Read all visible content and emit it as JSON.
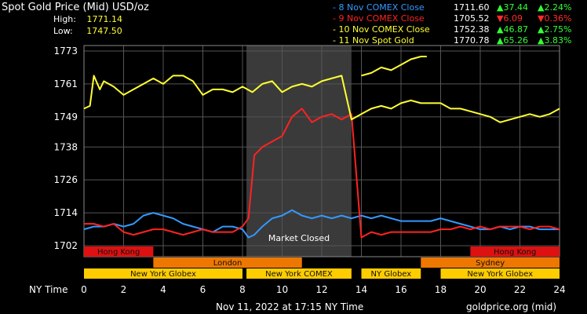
{
  "title": "Spot Gold Price (Mid) USD/oz",
  "high_label": "High:",
  "high_value": "1771.14",
  "low_label": "Low:",
  "low_value": "1747.50",
  "legend": [
    {
      "label": "- 8 Nov COMEX Close",
      "price": "1711.60",
      "change": "▲37.44",
      "pct": "▲2.24%",
      "dir": "up",
      "color": "#3399ff"
    },
    {
      "label": "- 9 Nov COMEX Close",
      "price": "1705.52",
      "change": "▼6.09",
      "pct": "▼0.36%",
      "dir": "down",
      "color": "#ff2222"
    },
    {
      "label": "- 10 Nov COMEX Close",
      "price": "1752.38",
      "change": "▲46.87",
      "pct": "▲2.75%",
      "dir": "up",
      "color": "#ffff33"
    },
    {
      "label": "- 11 Nov Spot Gold",
      "price": "1770.78",
      "change": "▲65.26",
      "pct": "▲3.83%",
      "dir": "up",
      "color": "#ffff33"
    }
  ],
  "market_closed_label": "Market Closed",
  "sessions": [
    {
      "label": "Hong Kong",
      "start": 0,
      "end": 3.5,
      "color": "#dd1111",
      "row": 0
    },
    {
      "label": "Hong Kong",
      "start": 19.5,
      "end": 24,
      "color": "#dd1111",
      "row": 0
    },
    {
      "label": "London",
      "start": 3.5,
      "end": 11,
      "color": "#ee7700",
      "row": 1
    },
    {
      "label": "Sydney",
      "start": 17,
      "end": 24,
      "color": "#ee7700",
      "row": 1
    },
    {
      "label": "New York Globex",
      "start": 0,
      "end": 8,
      "color": "#ffcc00",
      "row": 2
    },
    {
      "label": "New York COMEX",
      "start": 8.2,
      "end": 13.5,
      "color": "#ffcc00",
      "row": 2
    },
    {
      "label": "NY Globex",
      "start": 14,
      "end": 17,
      "color": "#ffcc00",
      "row": 2
    },
    {
      "label": "New York Globex",
      "start": 18,
      "end": 24,
      "color": "#ffcc00",
      "row": 2
    }
  ],
  "x_axis_label": "NY Time",
  "footer_left": "Nov 11, 2022 at 17:15 NY Time",
  "footer_right": "goldprice.org (mid)",
  "chart_data": {
    "type": "line",
    "x_ticks": [
      0,
      2,
      4,
      6,
      8,
      10,
      12,
      14,
      16,
      18,
      20,
      22,
      24
    ],
    "y_ticks": [
      1702,
      1714,
      1726,
      1738,
      1749,
      1761,
      1773
    ],
    "xlim": [
      0,
      24
    ],
    "ylim": [
      1698,
      1775
    ],
    "grid": true,
    "shaded_region": [
      8.2,
      13.5
    ],
    "series": [
      {
        "name": "8 Nov COMEX Close",
        "color": "#3399ff",
        "x": [
          0,
          0.5,
          1,
          1.5,
          2,
          2.5,
          3,
          3.5,
          4,
          4.5,
          5,
          5.5,
          6,
          6.5,
          7,
          7.5,
          8,
          8.3,
          8.6,
          9,
          9.5,
          10,
          10.5,
          11,
          11.5,
          12,
          12.5,
          13,
          13.5,
          14,
          14.5,
          15,
          15.5,
          16,
          16.5,
          17,
          17.5,
          18,
          18.5,
          19,
          19.5,
          20,
          20.5,
          21,
          21.5,
          22,
          22.5,
          23,
          23.5,
          24
        ],
        "y": [
          1708,
          1709,
          1709,
          1710,
          1709,
          1710,
          1713,
          1714,
          1713,
          1712,
          1710,
          1709,
          1708,
          1707,
          1709,
          1709,
          1708,
          1705,
          1706,
          1709,
          1712,
          1713,
          1715,
          1713,
          1712,
          1713,
          1712,
          1713,
          1712,
          1713,
          1712,
          1713,
          1712,
          1711,
          1711,
          1711,
          1711,
          1712,
          1711,
          1710,
          1709,
          1708,
          1708,
          1709,
          1708,
          1709,
          1709,
          1708,
          1708,
          1708
        ]
      },
      {
        "name": "9 Nov COMEX Close",
        "color": "#ff2222",
        "x": [
          0,
          0.5,
          1,
          1.5,
          2,
          2.5,
          3,
          3.5,
          4,
          4.5,
          5,
          5.5,
          6,
          6.5,
          7,
          7.5,
          8,
          8.3,
          8.6,
          9,
          9.5,
          10,
          10.5,
          11,
          11.5,
          12,
          12.5,
          13,
          13.5,
          14,
          14.5,
          15,
          15.5,
          16,
          16.5,
          17,
          17.5,
          18,
          18.5,
          19,
          19.5,
          20,
          20.5,
          21,
          21.5,
          22,
          22.5,
          23,
          23.5,
          24
        ],
        "y": [
          1710,
          1710,
          1709,
          1710,
          1707,
          1706,
          1707,
          1708,
          1708,
          1707,
          1706,
          1707,
          1708,
          1707,
          1707,
          1707,
          1709,
          1712,
          1735,
          1738,
          1740,
          1742,
          1749,
          1752,
          1747,
          1749,
          1750,
          1748,
          1750,
          1705,
          1707,
          1706,
          1707,
          1707,
          1707,
          1707,
          1707,
          1708,
          1708,
          1709,
          1708,
          1709,
          1708,
          1709,
          1709,
          1709,
          1708,
          1709,
          1709,
          1708
        ]
      },
      {
        "name": "10 Nov COMEX Close",
        "color": "#ffff33",
        "x": [
          0,
          0.3,
          0.5,
          0.8,
          1,
          1.5,
          2,
          2.5,
          3,
          3.5,
          4,
          4.5,
          5,
          5.5,
          6,
          6.5,
          7,
          7.5,
          8,
          8.5,
          9,
          9.5,
          10,
          10.5,
          11,
          11.5,
          12,
          12.5,
          13,
          13.5,
          14,
          14.5,
          15,
          15.5,
          16,
          16.5,
          17,
          17.5,
          18,
          18.5,
          19,
          19.5,
          20,
          20.5,
          21,
          21.5,
          22,
          22.5,
          23,
          23.5,
          24
        ],
        "y": [
          1752,
          1753,
          1764,
          1759,
          1762,
          1760,
          1757,
          1759,
          1761,
          1763,
          1761,
          1764,
          1764,
          1762,
          1757,
          1759,
          1759,
          1758,
          1760,
          1758,
          1761,
          1762,
          1758,
          1760,
          1761,
          1760,
          1762,
          1763,
          1764,
          1748,
          1750,
          1752,
          1753,
          1752,
          1754,
          1755,
          1754,
          1754,
          1754,
          1752,
          1752,
          1751,
          1750,
          1749,
          1747,
          1748,
          1749,
          1750,
          1749,
          1750,
          1752
        ]
      },
      {
        "name": "11 Nov Spot Gold",
        "color": "#ffff33",
        "x": [
          14,
          14.5,
          15,
          15.5,
          16,
          16.5,
          17,
          17.3
        ],
        "y": [
          1764,
          1765,
          1767,
          1766,
          1768,
          1770,
          1771,
          1771
        ]
      }
    ]
  }
}
